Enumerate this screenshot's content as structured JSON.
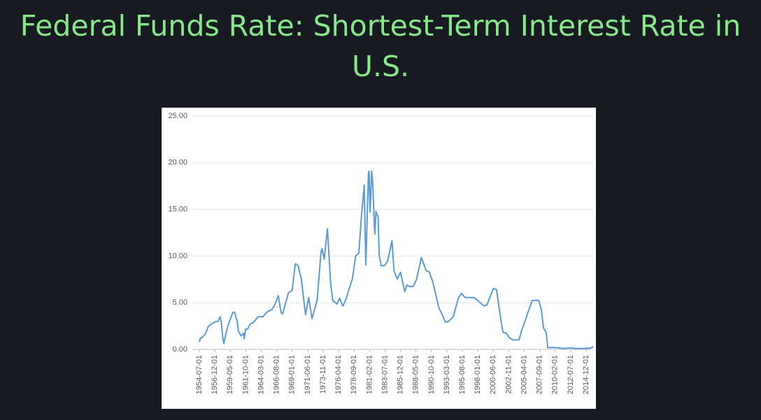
{
  "chart_data": {
    "type": "line",
    "title": "Federal Funds Rate: Shortest-Term Interest Rate in U.S.",
    "series": [
      {
        "color": "#5b9bd5",
        "x": [
          "1954-07-01",
          "1954-09-01",
          "1954-12-01",
          "1955-06-01",
          "1955-12-01",
          "1956-06-01",
          "1956-12-01",
          "1957-06-01",
          "1957-10-01",
          "1957-12-01",
          "1958-03-01",
          "1958-05-01",
          "1958-08-01",
          "1958-12-01",
          "1959-06-01",
          "1959-10-01",
          "1960-01-01",
          "1960-06-01",
          "1960-08-01",
          "1961-01-01",
          "1961-06-01",
          "1961-07-01",
          "1961-10-01",
          "1962-01-01",
          "1962-06-01",
          "1963-01-01",
          "1963-09-01",
          "1964-06-01",
          "1965-03-01",
          "1965-12-01",
          "1966-06-01",
          "1966-11-01",
          "1967-04-01",
          "1967-07-01",
          "1968-06-01",
          "1969-01-01",
          "1969-07-01",
          "1969-12-01",
          "1970-06-01",
          "1971-02-01",
          "1971-08-01",
          "1972-02-01",
          "1972-12-01",
          "1973-07-01",
          "1973-09-01",
          "1974-01-01",
          "1974-07-01",
          "1975-01-01",
          "1975-05-01",
          "1976-01-01",
          "1976-06-01",
          "1976-12-01",
          "1977-06-01",
          "1977-12-01",
          "1978-06-01",
          "1978-12-01",
          "1979-06-01",
          "1979-10-01",
          "1980-04-01",
          "1980-07-01",
          "1980-12-01",
          "1981-01-01",
          "1981-03-01",
          "1981-06-01",
          "1981-08-01",
          "1981-11-01",
          "1981-12-01",
          "1982-02-01",
          "1982-06-01",
          "1982-08-01",
          "1982-12-01",
          "1983-06-01",
          "1983-12-01",
          "1984-08-01",
          "1984-12-01",
          "1985-06-01",
          "1985-12-01",
          "1986-08-01",
          "1986-12-01",
          "1987-06-01",
          "1987-12-01",
          "1988-06-01",
          "1989-03-01",
          "1989-12-01",
          "1990-06-01",
          "1990-12-01",
          "1991-06-01",
          "1991-12-01",
          "1992-06-01",
          "1992-12-01",
          "1993-06-01",
          "1994-03-01",
          "1994-12-01",
          "1995-06-01",
          "1996-01-01",
          "1997-06-01",
          "1998-12-01",
          "1999-06-01",
          "2000-06-01",
          "2000-12-01",
          "2001-06-01",
          "2001-12-01",
          "2002-06-01",
          "2002-12-01",
          "2003-07-01",
          "2004-06-01",
          "2004-12-01",
          "2005-12-01",
          "2006-07-01",
          "2007-07-01",
          "2007-12-01",
          "2008-04-01",
          "2008-09-01",
          "2008-12-01",
          "2009-06-01",
          "2010-06-01",
          "2011-06-01",
          "2012-06-01",
          "2013-06-01",
          "2014-06-01",
          "2015-06-01",
          "2015-12-01",
          "2016-01-01"
        ],
        "values": [
          0.8,
          1.22,
          1.28,
          1.64,
          2.48,
          2.73,
          2.94,
          3.0,
          3.5,
          2.98,
          1.2,
          0.63,
          1.5,
          2.42,
          3.39,
          3.98,
          3.99,
          3.0,
          2.0,
          1.45,
          1.73,
          1.16,
          2.2,
          2.15,
          2.7,
          2.92,
          3.5,
          3.5,
          4.04,
          4.32,
          5.0,
          5.76,
          4.0,
          3.8,
          6.07,
          6.3,
          9.19,
          8.97,
          7.6,
          3.72,
          5.57,
          3.3,
          5.33,
          10.4,
          10.78,
          9.65,
          12.92,
          7.13,
          5.22,
          4.87,
          5.48,
          4.65,
          5.39,
          6.56,
          7.6,
          10.03,
          10.29,
          13.77,
          17.61,
          9.03,
          18.9,
          19.08,
          14.7,
          19.1,
          17.8,
          13.3,
          12.37,
          14.8,
          14.15,
          10.1,
          8.95,
          8.98,
          9.47,
          11.64,
          8.38,
          7.53,
          8.27,
          6.17,
          6.91,
          6.73,
          6.77,
          7.5,
          9.85,
          8.45,
          8.29,
          7.31,
          5.9,
          4.43,
          3.76,
          2.92,
          3.0,
          3.5,
          5.45,
          6.0,
          5.56,
          5.56,
          4.68,
          4.76,
          6.53,
          6.4,
          3.97,
          1.82,
          1.75,
          1.24,
          1.01,
          1.03,
          2.16,
          4.16,
          5.24,
          5.26,
          4.24,
          2.28,
          1.81,
          0.16,
          0.21,
          0.18,
          0.09,
          0.16,
          0.09,
          0.1,
          0.13,
          0.24,
          0.34
        ]
      }
    ],
    "xlim": [
      "1954-07-01",
      "2016-01-01"
    ],
    "xticks": [
      "1954-07-01",
      "1956-12-01",
      "1959-05-01",
      "1961-10-01",
      "1964-03-01",
      "1966-08-01",
      "1969-01-01",
      "1971-06-01",
      "1973-11-01",
      "1976-04-01",
      "1978-09-01",
      "1981-02-01",
      "1983-07-01",
      "1985-12-01",
      "1988-05-01",
      "1990-10-01",
      "1993-03-01",
      "1995-08-01",
      "1998-01-01",
      "2000-06-01",
      "2002-11-01",
      "2005-04-01",
      "2007-09-01",
      "2010-02-01",
      "2012-07-01",
      "2014-12-01"
    ],
    "ylim": [
      0,
      25
    ],
    "yticks": [
      {
        "value": 0,
        "label": "0.00"
      },
      {
        "value": 5,
        "label": "5.00"
      },
      {
        "value": 10,
        "label": "10.00"
      },
      {
        "value": 15,
        "label": "15.00"
      },
      {
        "value": 20,
        "label": "20.00"
      },
      {
        "value": 25,
        "label": "25.00"
      }
    ],
    "grid": true
  }
}
